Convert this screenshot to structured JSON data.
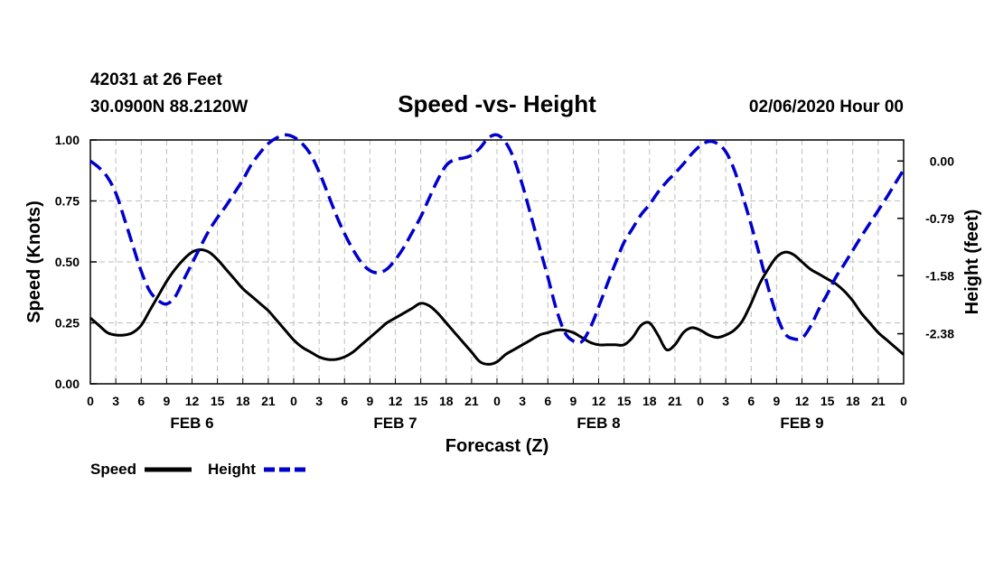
{
  "header": {
    "station": "42031 at 26 Feet",
    "location": "30.0900N 88.2120W",
    "datetime": "02/06/2020 Hour 00"
  },
  "chart_data": {
    "type": "line",
    "title": "Speed -vs- Height",
    "xlabel": "Forecast (Z)",
    "ylabel_left": "Speed (Knots)",
    "ylabel_right": "Height (feet)",
    "x_unit": "hours since FEB 6 00Z",
    "xlim": [
      0,
      96
    ],
    "ylim_left": [
      0,
      1
    ],
    "ylim_right": [
      -3.07,
      0.29
    ],
    "grid": true,
    "x_tick_labels": [
      "0",
      "3",
      "6",
      "9",
      "12",
      "15",
      "18",
      "21",
      "0",
      "3",
      "6",
      "9",
      "12",
      "15",
      "18",
      "21",
      "0",
      "3",
      "6",
      "9",
      "12",
      "15",
      "18",
      "21",
      "0",
      "3",
      "6",
      "9",
      "12",
      "15",
      "18",
      "21",
      "0"
    ],
    "left_tick_labels": [
      "0.00",
      "0.25",
      "0.50",
      "0.75",
      "1.00"
    ],
    "left_tick_values": [
      0,
      0.25,
      0.5,
      0.75,
      1.0
    ],
    "right_tick_labels": [
      "0.00",
      "-0.79",
      "-1.58",
      "-2.38"
    ],
    "right_tick_values": [
      0.0,
      -0.79,
      -1.58,
      -2.38
    ],
    "day_labels": [
      {
        "label": "FEB 6",
        "x": 12
      },
      {
        "label": "FEB 7",
        "x": 36
      },
      {
        "label": "FEB 8",
        "x": 60
      },
      {
        "label": "FEB 9",
        "x": 84
      }
    ],
    "series": [
      {
        "name": "Speed",
        "axis": "left",
        "color": "#000000",
        "style": "solid",
        "x": [
          0,
          1,
          2,
          3,
          4,
          5,
          6,
          7,
          8,
          9,
          10,
          11,
          12,
          13,
          14,
          15,
          16,
          17,
          18,
          19,
          20,
          21,
          22,
          23,
          24,
          25,
          26,
          27,
          28,
          29,
          30,
          31,
          32,
          33,
          34,
          35,
          36,
          37,
          38,
          39,
          40,
          41,
          42,
          43,
          44,
          45,
          46,
          47,
          48,
          49,
          50,
          51,
          52,
          53,
          54,
          55,
          56,
          57,
          58,
          59,
          60,
          61,
          62,
          63,
          64,
          65,
          66,
          67,
          68,
          69,
          70,
          71,
          72,
          73,
          74,
          75,
          76,
          77,
          78,
          79,
          80,
          81,
          82,
          83,
          84,
          85,
          86,
          87,
          88,
          89,
          90,
          91,
          92,
          93,
          94,
          95,
          96
        ],
        "values": [
          0.27,
          0.24,
          0.21,
          0.2,
          0.2,
          0.21,
          0.24,
          0.3,
          0.36,
          0.42,
          0.47,
          0.51,
          0.54,
          0.55,
          0.54,
          0.51,
          0.47,
          0.43,
          0.39,
          0.36,
          0.33,
          0.3,
          0.26,
          0.22,
          0.18,
          0.15,
          0.13,
          0.11,
          0.1,
          0.1,
          0.11,
          0.13,
          0.16,
          0.19,
          0.22,
          0.25,
          0.27,
          0.29,
          0.31,
          0.33,
          0.32,
          0.29,
          0.25,
          0.21,
          0.17,
          0.13,
          0.09,
          0.08,
          0.09,
          0.12,
          0.14,
          0.16,
          0.18,
          0.2,
          0.21,
          0.22,
          0.22,
          0.21,
          0.19,
          0.17,
          0.16,
          0.16,
          0.16,
          0.16,
          0.19,
          0.24,
          0.25,
          0.2,
          0.14,
          0.16,
          0.21,
          0.23,
          0.22,
          0.2,
          0.19,
          0.2,
          0.22,
          0.26,
          0.33,
          0.41,
          0.47,
          0.52,
          0.54,
          0.53,
          0.5,
          0.47,
          0.45,
          0.43,
          0.41,
          0.38,
          0.34,
          0.29,
          0.25,
          0.21,
          0.18,
          0.15,
          0.12
        ]
      },
      {
        "name": "Height",
        "axis": "right",
        "color": "#0000cc",
        "style": "dashed",
        "x": [
          0,
          1,
          2,
          3,
          4,
          5,
          6,
          7,
          8,
          9,
          10,
          11,
          12,
          13,
          14,
          15,
          16,
          17,
          18,
          19,
          20,
          21,
          22,
          23,
          24,
          25,
          26,
          27,
          28,
          29,
          30,
          31,
          32,
          33,
          34,
          35,
          36,
          37,
          38,
          39,
          40,
          41,
          42,
          43,
          44,
          45,
          46,
          47,
          48,
          49,
          50,
          51,
          52,
          53,
          54,
          55,
          56,
          57,
          58,
          59,
          60,
          61,
          62,
          63,
          64,
          65,
          66,
          67,
          68,
          69,
          70,
          71,
          72,
          73,
          74,
          75,
          76,
          77,
          78,
          79,
          80,
          81,
          82,
          83,
          84,
          85,
          86,
          87,
          88,
          89,
          90,
          91,
          92,
          93,
          94,
          95,
          96
        ],
        "values": [
          0.0,
          -0.09,
          -0.22,
          -0.44,
          -0.79,
          -1.16,
          -1.52,
          -1.79,
          -1.92,
          -1.97,
          -1.87,
          -1.64,
          -1.41,
          -1.18,
          -0.96,
          -0.78,
          -0.62,
          -0.44,
          -0.26,
          -0.05,
          0.11,
          0.24,
          0.32,
          0.36,
          0.33,
          0.24,
          0.09,
          -0.15,
          -0.44,
          -0.74,
          -1.0,
          -1.22,
          -1.4,
          -1.51,
          -1.54,
          -1.49,
          -1.36,
          -1.19,
          -0.98,
          -0.77,
          -0.51,
          -0.26,
          -0.06,
          0.02,
          0.04,
          0.08,
          0.18,
          0.32,
          0.36,
          0.26,
          0.03,
          -0.33,
          -0.75,
          -1.18,
          -1.6,
          -2.04,
          -2.36,
          -2.48,
          -2.49,
          -2.3,
          -2.01,
          -1.7,
          -1.4,
          -1.12,
          -0.93,
          -0.74,
          -0.6,
          -0.43,
          -0.29,
          -0.17,
          -0.04,
          0.1,
          0.21,
          0.27,
          0.24,
          0.13,
          -0.12,
          -0.48,
          -0.88,
          -1.3,
          -1.74,
          -2.12,
          -2.38,
          -2.45,
          -2.44,
          -2.28,
          -2.04,
          -1.83,
          -1.6,
          -1.42,
          -1.23,
          -1.04,
          -0.86,
          -0.68,
          -0.5,
          -0.31,
          -0.12
        ]
      }
    ],
    "legend": {
      "position": "bottom-left",
      "entries": [
        "Speed",
        "Height"
      ]
    }
  }
}
